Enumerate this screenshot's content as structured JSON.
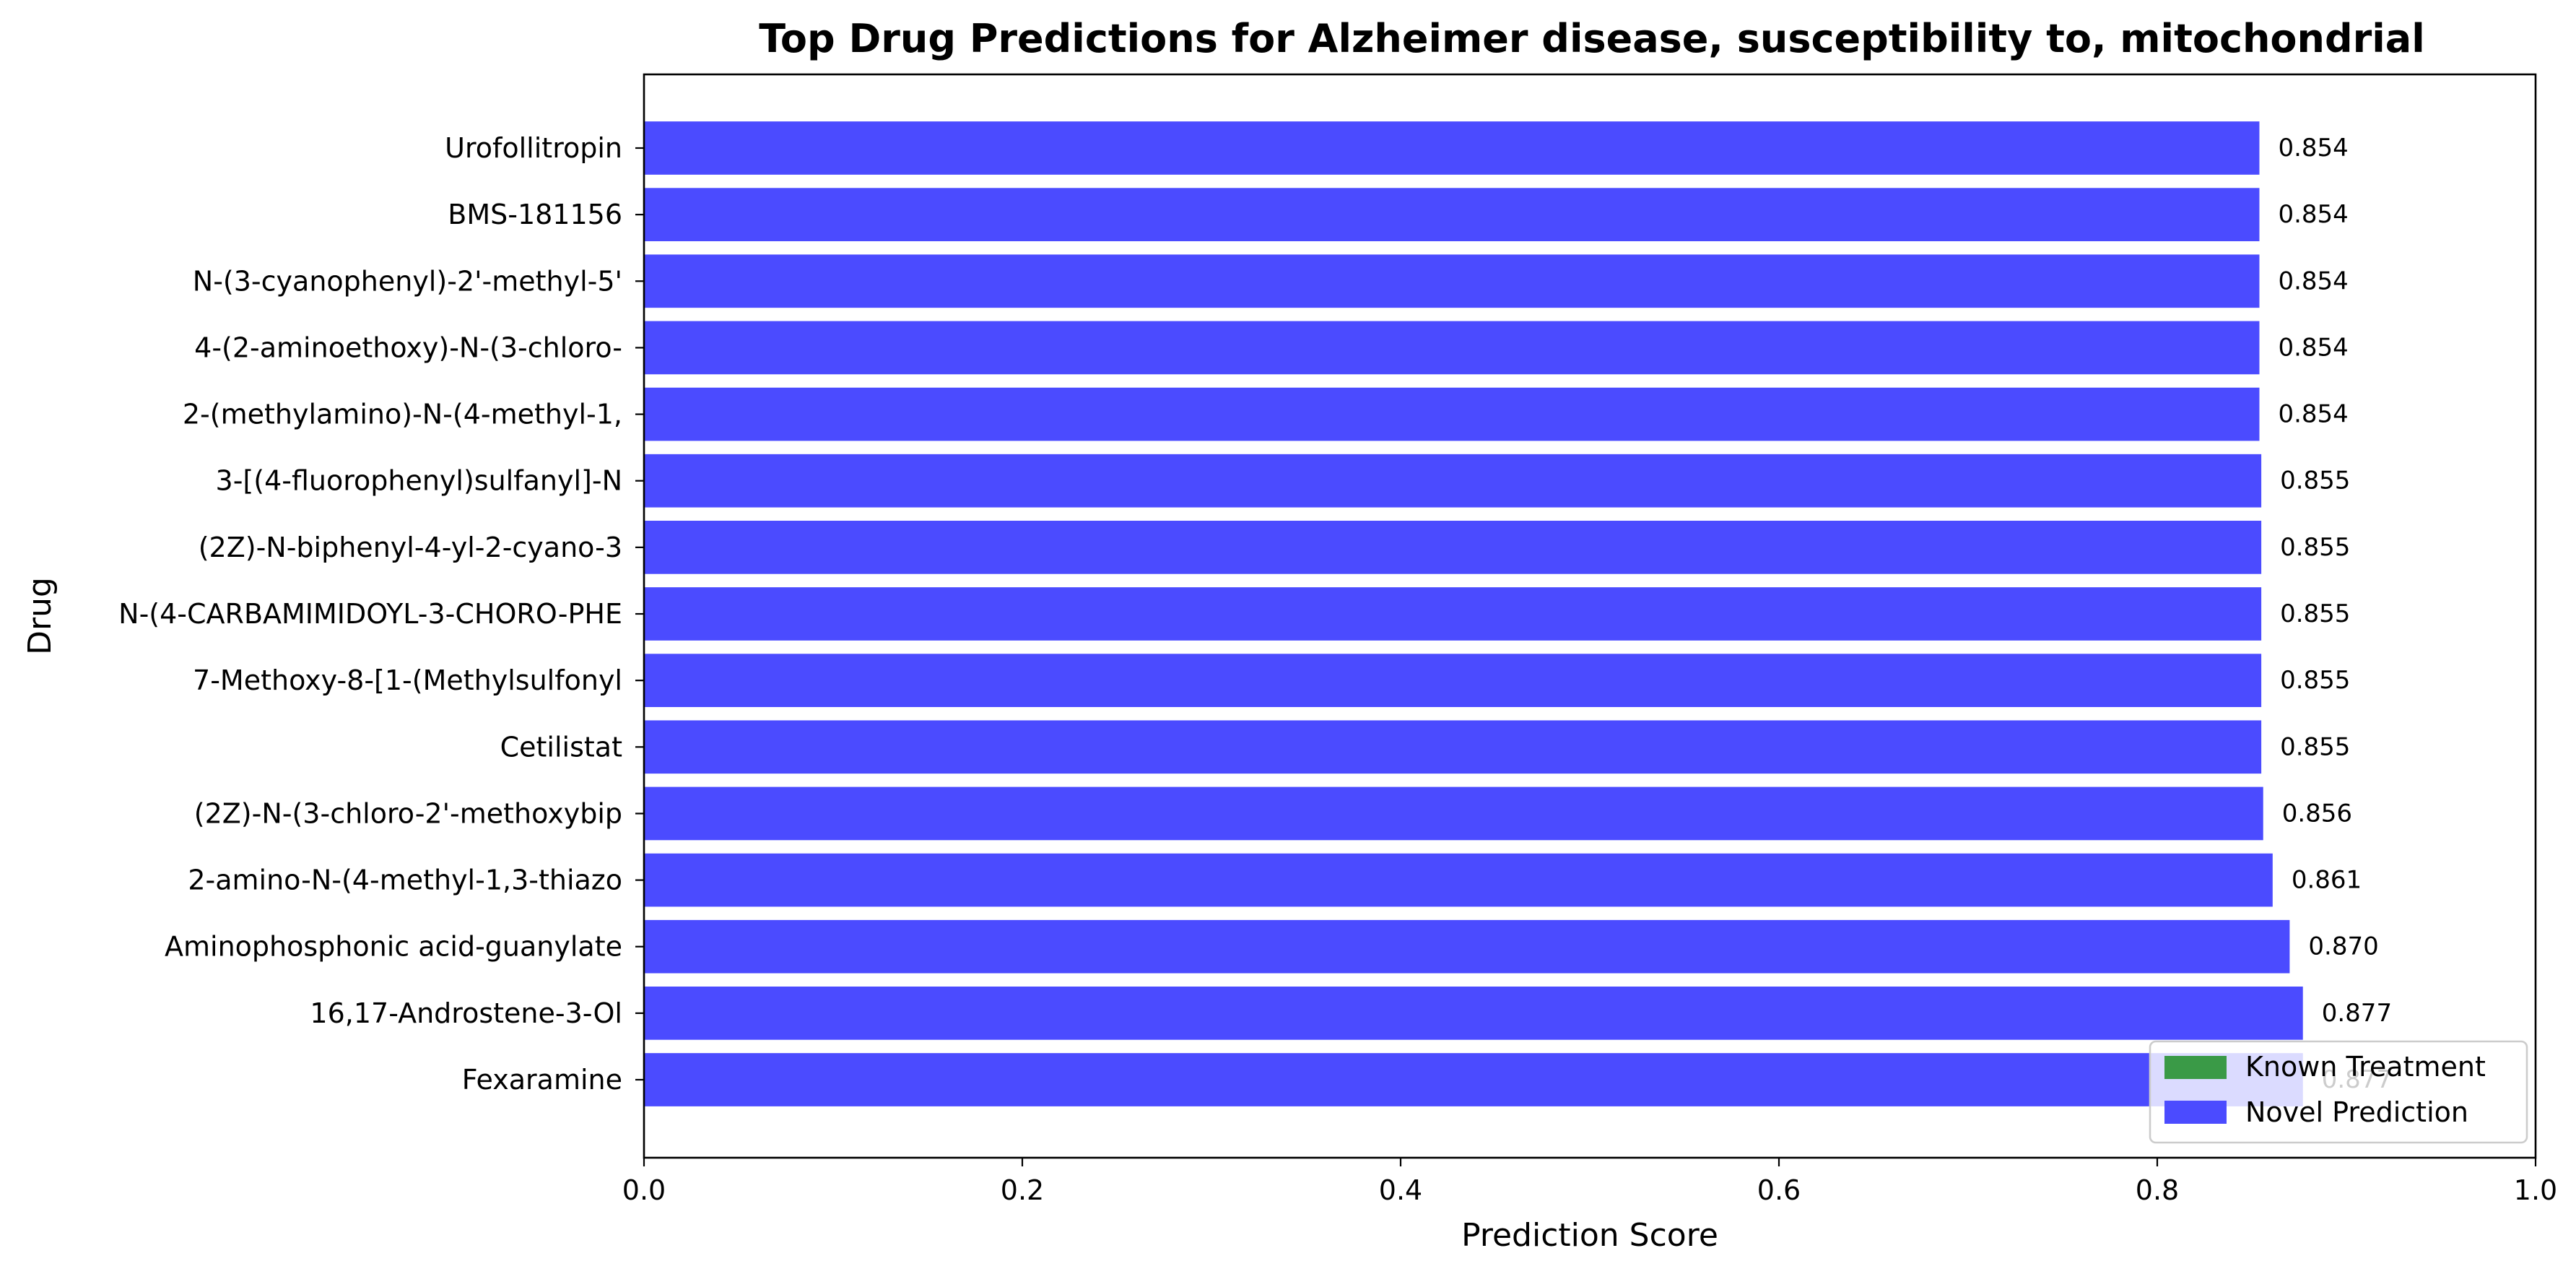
{
  "chart_data": {
    "type": "bar",
    "orientation": "horizontal",
    "title": "Top Drug Predictions for Alzheimer disease, susceptibility to, mitochondrial",
    "xlabel": "Prediction Score",
    "ylabel": "Drug",
    "xlim": [
      0,
      1.0
    ],
    "xticks": [
      "0.0",
      "0.2",
      "0.4",
      "0.6",
      "0.8",
      "1.0"
    ],
    "grid": false,
    "legend_position": "lower-right",
    "categories": [
      "Urofollitropin",
      "BMS-181156",
      "N-(3-cyanophenyl)-2'-methyl-5'",
      "4-(2-aminoethoxy)-N-(3-chloro-",
      "2-(methylamino)-N-(4-methyl-1,",
      "3-[(4-fluorophenyl)sulfanyl]-N",
      "(2Z)-N-biphenyl-4-yl-2-cyano-3",
      "N-(4-CARBAMIMIDOYL-3-CHORO-PHE",
      "7-Methoxy-8-[1-(Methylsulfonyl",
      "Cetilistat",
      "(2Z)-N-(3-chloro-2'-methoxybip",
      "2-amino-N-(4-methyl-1,3-thiazo",
      "Aminophosphonic acid-guanylate",
      "16,17-Androstene-3-Ol",
      "Fexaramine"
    ],
    "values": [
      0.854,
      0.854,
      0.854,
      0.854,
      0.854,
      0.855,
      0.855,
      0.855,
      0.855,
      0.855,
      0.856,
      0.861,
      0.87,
      0.877,
      0.877
    ],
    "value_labels": [
      "0.854",
      "0.854",
      "0.854",
      "0.854",
      "0.854",
      "0.855",
      "0.855",
      "0.855",
      "0.855",
      "0.855",
      "0.856",
      "0.861",
      "0.870",
      "0.877",
      "0.877"
    ],
    "series": [
      {
        "name": "Known Treatment",
        "color": "#3a9a47"
      },
      {
        "name": "Novel Prediction",
        "color": "#4b4bff"
      }
    ],
    "bar_series": "Novel Prediction"
  }
}
